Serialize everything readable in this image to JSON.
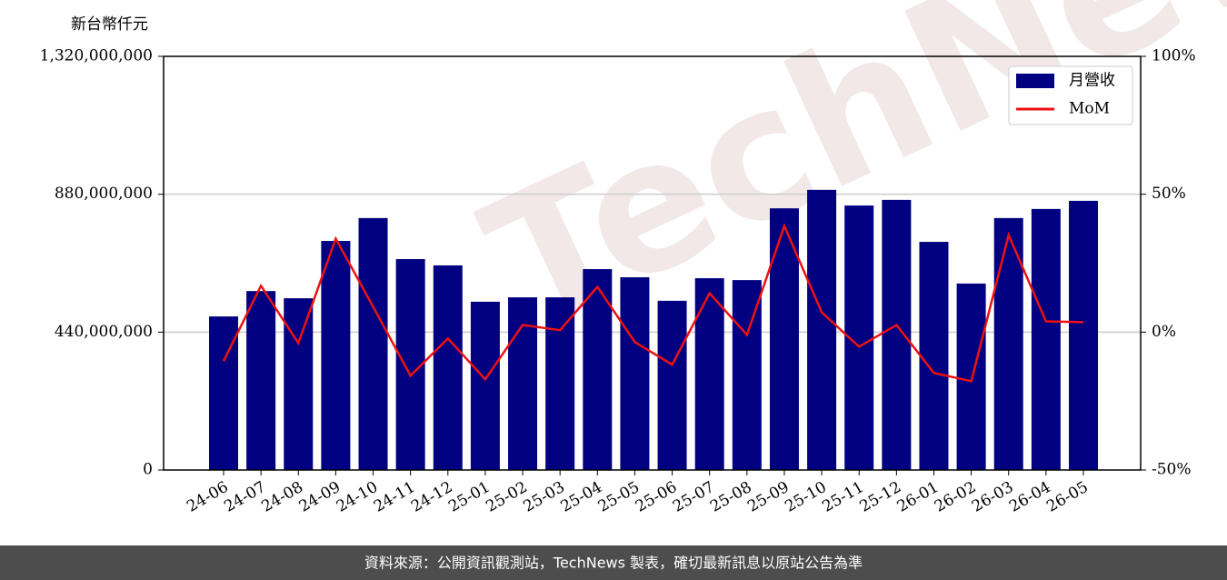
{
  "chart_data": {
    "type": "bar-line",
    "y_axis_label": "新台幣仟元",
    "watermark": "TechNews",
    "footer": "資料來源：公開資訊觀測站，TechNews 製表，確切最新訊息以原站公告為準",
    "categories": [
      "24-06",
      "24-07",
      "24-08",
      "24-09",
      "24-10",
      "24-11",
      "24-12",
      "25-01",
      "25-02",
      "25-03",
      "25-04",
      "25-05",
      "25-06",
      "25-07",
      "25-08",
      "25-09",
      "25-10",
      "25-11",
      "25-12",
      "26-01",
      "26-02",
      "26-03",
      "26-04",
      "26-05"
    ],
    "series": [
      {
        "name": "月營收",
        "type": "bar",
        "color": "#000080",
        "values": [
          490000000,
          571000000,
          548000000,
          731000000,
          804000000,
          673000000,
          653000000,
          537000000,
          551000000,
          551000000,
          641000000,
          615000000,
          540000000,
          612000000,
          606000000,
          835000000,
          894000000,
          844000000,
          862000000,
          728000000,
          595000000,
          804000000,
          833000000,
          859000000
        ]
      },
      {
        "name": "MoM",
        "type": "line",
        "color": "#ee1111",
        "axis": "y2",
        "values": [
          -10.5,
          16.8,
          -4.0,
          33.9,
          9.2,
          -15.8,
          -2.3,
          -17.1,
          2.6,
          0.7,
          16.4,
          -3.6,
          -11.8,
          14.1,
          -1.0,
          38.5,
          7.2,
          -5.3,
          2.6,
          -14.8,
          -17.8,
          35.2,
          3.9,
          3.6
        ]
      }
    ],
    "ylim": [
      0,
      1320000000
    ],
    "yticks": [
      0,
      {
        "value": 440000000,
        "label": "440,000,000"
      },
      {
        "value": 880000000,
        "label": "880,000,000"
      },
      {
        "value": 1320000000,
        "label": "1,320,000,000"
      }
    ],
    "y2lim": [
      -50,
      100
    ],
    "y2ticks": [
      {
        "value": -50,
        "label": "-50%"
      },
      {
        "value": 0,
        "label": "0%"
      },
      {
        "value": 50,
        "label": "50%"
      },
      {
        "value": 100,
        "label": "100%"
      }
    ],
    "grid": true,
    "legend": "upper right"
  }
}
